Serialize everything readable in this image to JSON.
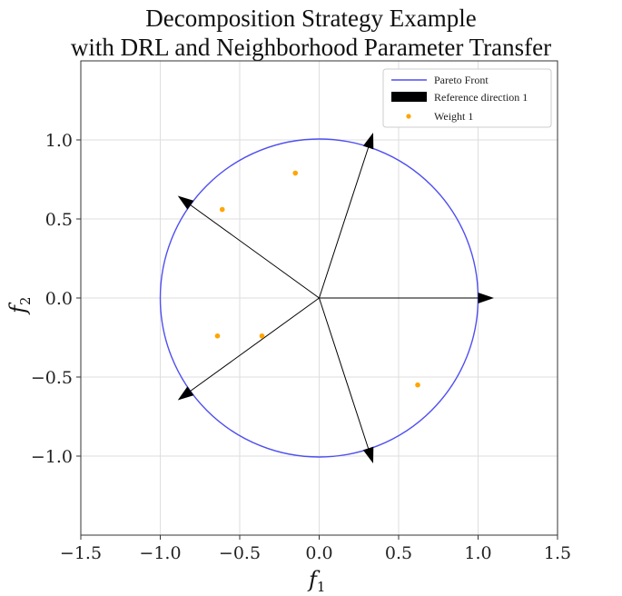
{
  "chart_data": {
    "type": "scatter",
    "title_line1": "Decomposition Strategy Example",
    "title_line2": "with DRL and Neighborhood Parameter Transfer",
    "xlabel": "f",
    "xlabel_sub": "1",
    "ylabel": "f",
    "ylabel_sub": "2",
    "xlim": [
      -1.5,
      1.5
    ],
    "ylim": [
      -1.5,
      1.5
    ],
    "x_ticks": [
      -1.5,
      -1.0,
      -0.5,
      0.0,
      0.5,
      1.0,
      1.5
    ],
    "x_tick_labels": [
      "−1.5",
      "−1.0",
      "−0.5",
      "0.0",
      "0.5",
      "1.0",
      "1.5"
    ],
    "y_ticks": [
      1.0,
      0.5,
      0.0,
      -0.5,
      -1.0
    ],
    "y_tick_labels": [
      "1.0",
      "0.5",
      "0.0",
      "−0.5",
      "−1.0"
    ],
    "grid": true,
    "legend_position": "top-right",
    "pareto_front": {
      "name": "Pareto Front",
      "type": "circle",
      "center": [
        0,
        0
      ],
      "radius": 1.0,
      "color": "#4f4ff0"
    },
    "reference_directions": {
      "name": "Reference direction 1",
      "color": "#000000",
      "angles_deg": [
        0,
        72,
        144,
        216,
        288
      ],
      "length": 1.1
    },
    "weights": {
      "name": "Weight 1",
      "color": "#ffa500",
      "points": [
        [
          -0.15,
          0.79
        ],
        [
          -0.61,
          0.56
        ],
        [
          -0.64,
          -0.24
        ],
        [
          -0.36,
          -0.24
        ],
        [
          0.62,
          -0.55
        ]
      ]
    }
  }
}
